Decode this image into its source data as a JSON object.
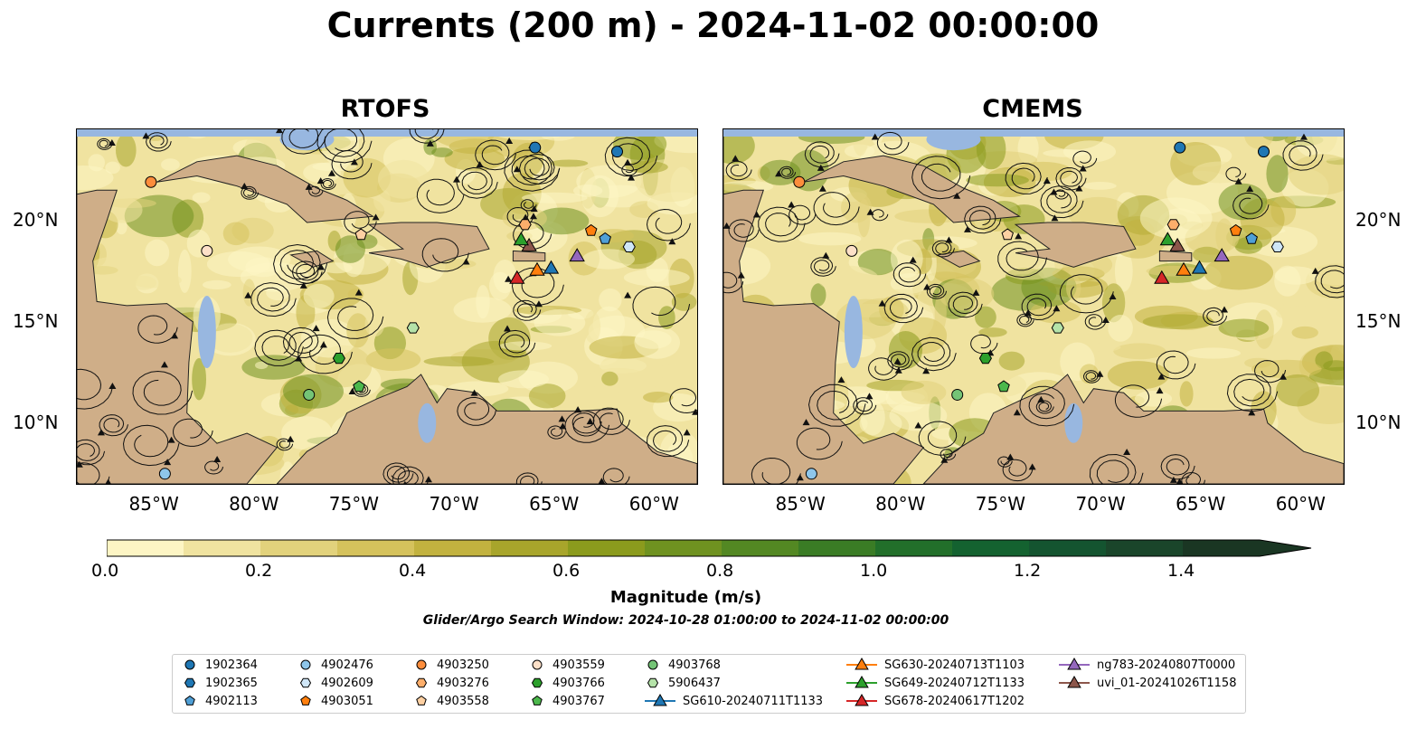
{
  "title": "Currents (200 m) - 2024-11-02 00:00:00",
  "panels": [
    {
      "title": "RTOFS"
    },
    {
      "title": "CMEMS"
    }
  ],
  "axes": {
    "lon_ticks": [
      "85°W",
      "80°W",
      "75°W",
      "70°W",
      "65°W",
      "60°W"
    ],
    "lat_ticks": [
      "20°N",
      "15°N",
      "10°N"
    ],
    "lon_range": [
      -89,
      -58
    ],
    "lat_range": [
      7,
      24.5
    ]
  },
  "colorbar": {
    "label": "Magnitude (m/s)",
    "ticks": [
      "0.0",
      "0.2",
      "0.4",
      "0.6",
      "0.8",
      "1.0",
      "1.2",
      "1.4"
    ],
    "range": [
      0.0,
      1.5
    ],
    "step": 0.1,
    "extend": "max",
    "colors": [
      "#fdf5c4",
      "#f0e3a0",
      "#e2d27c",
      "#d5c25c",
      "#c2b23f",
      "#a8a52b",
      "#8b9b1d",
      "#6f9220",
      "#538823",
      "#3a7c25",
      "#226f2a",
      "#146230",
      "#145430",
      "#1a452a",
      "#1a3623"
    ]
  },
  "search_window": "Glider/Argo Search Window: 2024-10-28 01:00:00 to 2024-11-02 00:00:00",
  "colors": {
    "ocean_fill": "#98b7e0",
    "land": "#cfae88"
  },
  "legend": [
    {
      "label": "1902364",
      "marker": "circle",
      "color": "#1f77b4"
    },
    {
      "label": "1902365",
      "marker": "hexagon",
      "color": "#1f77b4"
    },
    {
      "label": "4902113",
      "marker": "pentagon",
      "color": "#4f9fd6"
    },
    {
      "label": "4902476",
      "marker": "circle",
      "color": "#8ec6ea"
    },
    {
      "label": "4902609",
      "marker": "hexagon",
      "color": "#cfe6f7"
    },
    {
      "label": "4903051",
      "marker": "pentagon",
      "color": "#ff7f0e"
    },
    {
      "label": "4903250",
      "marker": "circle",
      "color": "#fd8d3c"
    },
    {
      "label": "4903276",
      "marker": "hexagon",
      "color": "#fdae6b"
    },
    {
      "label": "4903558",
      "marker": "pentagon",
      "color": "#fdd0a2"
    },
    {
      "label": "4903559",
      "marker": "circle",
      "color": "#fde0c8"
    },
    {
      "label": "4903766",
      "marker": "hexagon",
      "color": "#2ca02c"
    },
    {
      "label": "4903767",
      "marker": "pentagon",
      "color": "#4cb84c"
    },
    {
      "label": "4903768",
      "marker": "circle",
      "color": "#74c476"
    },
    {
      "label": "5906437",
      "marker": "hexagon",
      "color": "#b5e3a9"
    },
    {
      "label": "SG610-20240711T1133",
      "marker": "triangle-line",
      "color": "#1f77b4"
    },
    {
      "label": "SG630-20240713T1103",
      "marker": "triangle-line",
      "color": "#ff7f0e"
    },
    {
      "label": "SG649-20240712T1133",
      "marker": "triangle-line",
      "color": "#2ca02c"
    },
    {
      "label": "SG678-20240617T1202",
      "marker": "triangle-line",
      "color": "#d62728"
    },
    {
      "label": "ng783-20240807T0000",
      "marker": "triangle-line",
      "color": "#9467bd"
    },
    {
      "label": "uvi_01-20241026T1158",
      "marker": "triangle-line",
      "color": "#8c564b"
    }
  ],
  "observations_rtofs": [
    {
      "id": "1902364",
      "lon": -66.1,
      "lat": 23.6
    },
    {
      "id": "1902364",
      "lon": -62.0,
      "lat": 23.4
    },
    {
      "id": "4903250",
      "lon": -85.3,
      "lat": 21.9
    },
    {
      "id": "4903559",
      "lon": -82.5,
      "lat": 18.5
    },
    {
      "id": "4903558",
      "lon": -74.8,
      "lat": 19.3
    },
    {
      "id": "4903276",
      "lon": -66.6,
      "lat": 19.8
    },
    {
      "id": "4903051",
      "lon": -63.3,
      "lat": 19.5
    },
    {
      "id": "4902113",
      "lon": -62.6,
      "lat": 19.1
    },
    {
      "id": "4902609",
      "lon": -61.4,
      "lat": 18.7
    },
    {
      "id": "5906437",
      "lon": -72.2,
      "lat": 14.7
    },
    {
      "id": "4903766",
      "lon": -75.9,
      "lat": 13.2
    },
    {
      "id": "4903768",
      "lon": -77.4,
      "lat": 11.4
    },
    {
      "id": "4903767",
      "lon": -74.9,
      "lat": 11.8
    },
    {
      "id": "4902476",
      "lon": -84.6,
      "lat": 7.5
    },
    {
      "id": "uvi_01-20241026T1158",
      "lon": -66.4,
      "lat": 18.7
    },
    {
      "id": "ng783-20240807T0000",
      "lon": -64.0,
      "lat": 18.2
    },
    {
      "id": "SG630-20240713T1103",
      "lon": -66.0,
      "lat": 17.5
    },
    {
      "id": "SG610-20240711T1133",
      "lon": -65.3,
      "lat": 17.6
    },
    {
      "id": "SG678-20240617T1202",
      "lon": -67.0,
      "lat": 17.1
    },
    {
      "id": "SG649-20240712T1133",
      "lon": -66.8,
      "lat": 19.0
    }
  ]
}
